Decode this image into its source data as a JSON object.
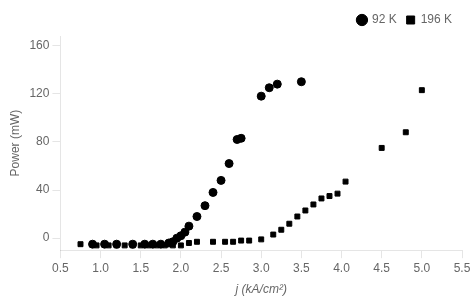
{
  "chart_data": {
    "type": "scatter",
    "x_label": "j (kA/cm²)",
    "y_label": "Power (mW)",
    "xlim": [
      0.5,
      5.5
    ],
    "ylim": [
      -10,
      168
    ],
    "xticks": [
      0.5,
      {
        "value": 1.0,
        "label": "1.0"
      },
      1.5,
      {
        "value": 2.0,
        "label": "2.0"
      },
      2.5,
      {
        "value": 3.0,
        "label": "3.0"
      },
      3.5,
      {
        "value": 4.0,
        "label": "4.0"
      },
      4.5,
      {
        "value": 5.0,
        "label": "5.0"
      },
      5.5
    ],
    "yticks": [
      0,
      40,
      80,
      120,
      160
    ],
    "grid": false,
    "legend": "upper right",
    "series": [
      {
        "name": "92 K",
        "color": "#000000",
        "marker": "circle",
        "x": [
          0.9,
          1.05,
          1.2,
          1.4,
          1.55,
          1.65,
          1.75,
          1.85,
          1.9,
          1.95,
          2.0,
          2.05,
          2.1,
          2.2,
          2.3,
          2.4,
          2.5,
          2.6,
          2.7,
          2.75,
          3.0,
          3.1,
          3.2,
          3.5
        ],
        "values": [
          -5,
          -5,
          -5,
          -5,
          -5,
          -5,
          -5,
          -4,
          -3,
          0,
          2,
          5,
          10,
          18,
          27,
          38,
          48,
          62,
          82,
          83,
          118,
          125,
          128,
          130
        ]
      },
      {
        "name": "196 K",
        "color": "#000000",
        "marker": "square",
        "x": [
          0.75,
          0.95,
          1.1,
          1.2,
          1.3,
          1.4,
          1.5,
          1.6,
          1.7,
          1.8,
          1.9,
          2.0,
          2.1,
          2.2,
          2.4,
          2.55,
          2.65,
          2.75,
          2.85,
          3.0,
          3.15,
          3.25,
          3.35,
          3.45,
          3.55,
          3.65,
          3.75,
          3.85,
          3.95,
          4.05,
          4.5,
          4.8,
          5.0
        ],
        "values": [
          -5,
          -6,
          -6,
          -6,
          -6,
          -6,
          -6,
          -6,
          -6,
          -6,
          -6,
          -6,
          -4,
          -3,
          -3,
          -3,
          -3,
          -2,
          -2,
          -1,
          3,
          7,
          12,
          18,
          23,
          28,
          33,
          35,
          37,
          47,
          75,
          88,
          123
        ]
      }
    ]
  }
}
